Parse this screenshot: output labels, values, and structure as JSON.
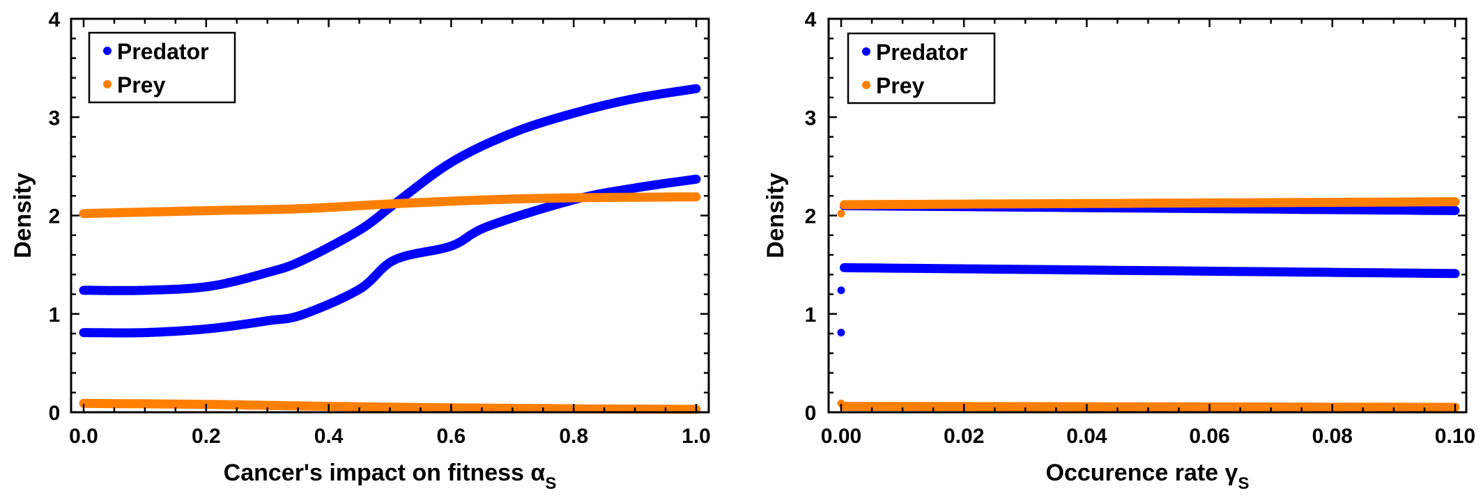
{
  "colors": {
    "predator": "#0000ff",
    "prey": "#ff7f00",
    "axis": "#000000"
  },
  "chart_data": [
    {
      "type": "scatter",
      "title": "",
      "xlabel": "Cancer's impact on fitness α",
      "xlabel_sub": "S",
      "ylabel": "Density",
      "xlim": [
        0,
        1
      ],
      "ylim": [
        0,
        4
      ],
      "xticks": [
        0.0,
        0.2,
        0.4,
        0.6,
        0.8,
        1.0
      ],
      "xtick_labels": [
        "0.0",
        "0.2",
        "0.4",
        "0.6",
        "0.8",
        "1.0"
      ],
      "xminor_step": 0.05,
      "yticks": [
        0,
        1,
        2,
        3,
        4
      ],
      "ytick_labels": [
        "0",
        "1",
        "2",
        "3",
        "4"
      ],
      "yminor_step": 0.2,
      "grid": false,
      "legend": {
        "placement": "top-left",
        "entries": [
          {
            "label": "Predator",
            "series": "predator"
          },
          {
            "label": "Prey",
            "series": "prey"
          }
        ]
      },
      "series": [
        {
          "name": "Predator (upper branch)",
          "group": "predator",
          "x": [
            0,
            0.1,
            0.205,
            0.3,
            0.356,
            0.45,
            0.508,
            0.6,
            0.7,
            0.8,
            0.9,
            1.0
          ],
          "y": [
            1.24,
            1.24,
            1.28,
            1.42,
            1.54,
            1.85,
            2.12,
            2.54,
            2.84,
            3.04,
            3.19,
            3.29
          ]
        },
        {
          "name": "Predator (lower branch)",
          "group": "predator",
          "x": [
            0,
            0.1,
            0.205,
            0.3,
            0.356,
            0.45,
            0.508,
            0.6,
            0.66,
            0.8,
            0.9,
            1.0
          ],
          "y": [
            0.81,
            0.81,
            0.85,
            0.93,
            0.99,
            1.25,
            1.55,
            1.69,
            1.89,
            2.16,
            2.28,
            2.37
          ]
        },
        {
          "name": "Prey (upper branch)",
          "group": "prey",
          "x": [
            0,
            0.205,
            0.356,
            0.508,
            0.66,
            0.8,
            1.0
          ],
          "y": [
            2.02,
            2.05,
            2.07,
            2.12,
            2.16,
            2.18,
            2.19
          ]
        },
        {
          "name": "Prey (lower branch)",
          "group": "prey",
          "x": [
            0,
            0.2,
            0.4,
            0.6,
            0.8,
            1.0
          ],
          "y": [
            0.09,
            0.08,
            0.06,
            0.045,
            0.035,
            0.03
          ]
        }
      ]
    },
    {
      "type": "scatter",
      "title": "",
      "xlabel": "Occurence rate γ",
      "xlabel_sub": "S",
      "ylabel": "Density",
      "xlim": [
        0,
        0.1
      ],
      "ylim": [
        0,
        4
      ],
      "xticks": [
        0.0,
        0.02,
        0.04,
        0.06,
        0.08,
        0.1
      ],
      "xtick_labels": [
        "0.00",
        "0.02",
        "0.04",
        "0.06",
        "0.08",
        "0.10"
      ],
      "xminor_step": 0.005,
      "yticks": [
        0,
        1,
        2,
        3,
        4
      ],
      "ytick_labels": [
        "0",
        "1",
        "2",
        "3",
        "4"
      ],
      "yminor_step": 0.2,
      "grid": false,
      "legend": {
        "placement": "top-left",
        "entries": [
          {
            "label": "Predator",
            "series": "predator"
          },
          {
            "label": "Prey",
            "series": "prey"
          }
        ]
      },
      "series": [
        {
          "name": "Predator (upper branch)",
          "group": "predator",
          "x": [
            0.0005,
            0.1
          ],
          "y": [
            2.1,
            2.05
          ]
        },
        {
          "name": "Predator (lower branch)",
          "group": "predator",
          "x": [
            0.0005,
            0.1
          ],
          "y": [
            1.47,
            1.41
          ]
        },
        {
          "name": "Prey (upper branch)",
          "group": "prey",
          "x": [
            0.0005,
            0.1
          ],
          "y": [
            2.11,
            2.14
          ]
        },
        {
          "name": "Prey (lower branch)",
          "group": "prey",
          "x": [
            0.0005,
            0.1
          ],
          "y": [
            0.06,
            0.05
          ]
        },
        {
          "name": "Predator at γ=0",
          "group": "predator",
          "points": true,
          "x": [
            0,
            0
          ],
          "y": [
            1.24,
            0.81
          ]
        },
        {
          "name": "Prey at γ=0",
          "group": "prey",
          "points": true,
          "x": [
            0,
            0
          ],
          "y": [
            2.02,
            0.09
          ]
        }
      ]
    }
  ]
}
